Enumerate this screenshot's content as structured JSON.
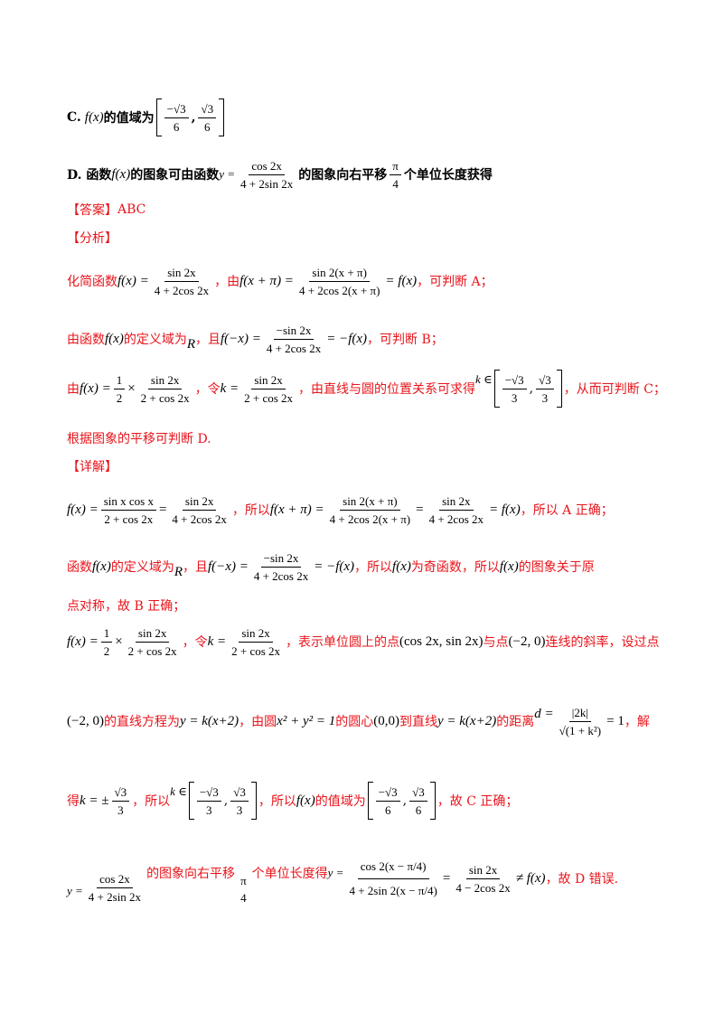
{
  "optionC": {
    "label": "C.",
    "fx": "f(x)",
    "text": "的值域为",
    "lower": "−√3 / 6",
    "upper": "√3 / 6"
  },
  "optionD": {
    "label": "D. 函数",
    "fx": "f(x)",
    "text1": "的图象可由函数",
    "y_eq": "y =",
    "num": "cos 2x",
    "den": "4 + 2sin 2x",
    "text2": "的图象向右平移",
    "shift_num": "π",
    "shift_den": "4",
    "text3": "个单位长度获得"
  },
  "answer": {
    "label": "【答案】",
    "value": "ABC"
  },
  "analysis": {
    "label": "【分析】",
    "l1": {
      "t1": "化简函数",
      "fx": "f(x) =",
      "num1": "sin 2x",
      "den1": "4 + 2cos 2x",
      "t2": "，由",
      "lhs": "f(x + π) =",
      "num2": "sin 2(x + π)",
      "den2": "4 + 2cos 2(x + π)",
      "rhs": "= f(x)",
      "t3": "，可判断 A；"
    },
    "l2": {
      "t1": "由函数",
      "fx": "f(x)",
      "t2": "的定义域为",
      "R": "R",
      "t3": "，且",
      "lhs": "f(−x) =",
      "num": "−sin 2x",
      "den": "4 + 2cos 2x",
      "rhs": "= −f(x)",
      "t4": "，可判断 B；"
    },
    "l3": {
      "t1": "由",
      "lhs": "f(x) =",
      "half_num": "1",
      "half_den": "2",
      "times": "×",
      "num": "sin 2x",
      "den": "2 + cos 2x",
      "t2": "，令",
      "k": "k =",
      "knum": "sin 2x",
      "kden": "2 + cos 2x",
      "t3": "，由直线与圆的位置关系可求得",
      "kin": "k ∈",
      "lo_num": "−√3",
      "lo_den": "3",
      "hi_num": "√3",
      "hi_den": "3",
      "t4": "，从而可判断 C；"
    },
    "l4": "根据图象的平移可判断 D."
  },
  "detail": {
    "label": "【详解】",
    "l1": {
      "lhs": "f(x) =",
      "num1": "sin x cos x",
      "den1": "2 + cos 2x",
      "eq": "=",
      "num2": "sin 2x",
      "den2": "4 + 2cos 2x",
      "t1": "，所以",
      "lhs2": "f(x + π) =",
      "num3": "sin 2(x + π)",
      "den3": "4 + 2cos 2(x + π)",
      "eq2": "=",
      "num4": "sin 2x",
      "den4": "4 + 2cos 2x",
      "rhs": "= f(x)",
      "t2": "，所以 A 正确；"
    },
    "l2": {
      "t1": "函数",
      "fx": "f(x)",
      "t2": "的定义域为",
      "R": "R",
      "t3": "，且",
      "lhs": "f(−x) =",
      "num": "−sin 2x",
      "den": "4 + 2cos 2x",
      "rhs": "= −f(x)",
      "t4": "，所以",
      "fx2": "f(x)",
      "t5": "为奇函数，所以",
      "fx3": "f(x)",
      "t6": "的图象关于原"
    },
    "l3": "点对称，故 B 正确；",
    "l4": {
      "lhs": "f(x) =",
      "half_num": "1",
      "half_den": "2",
      "times": "×",
      "num": "sin 2x",
      "den": "2 + cos 2x",
      "t1": "，令",
      "k": "k =",
      "knum": "sin 2x",
      "kden": "2 + cos 2x",
      "t2": "，表示单位圆上的点",
      "pt1": "(cos 2x, sin 2x)",
      "t3": "与点",
      "pt2": "(−2, 0)",
      "t4": "连线的斜率，设过点"
    },
    "l5": {
      "pt": "(−2, 0)",
      "t1": "的直线方程为",
      "line": "y = k(x+2)",
      "t2": "，由圆",
      "circle": "x² + y² = 1",
      "t3": "的圆心",
      "center": "(0,0)",
      "t4": "到直线",
      "line2": "y = k(x+2)",
      "t5": "的距离",
      "d": "d =",
      "dnum": "|2k|",
      "dden": "√(1 + k²)",
      "deq": "= 1",
      "t6": "，解"
    },
    "l6": {
      "t1": "得",
      "keq": "k = ±",
      "knum": "√3",
      "kden": "3",
      "t2": "，所以",
      "kin": "k ∈",
      "lo_num": "−√3",
      "lo_den": "3",
      "hi_num": "√3",
      "hi_den": "3",
      "t3": "，所以",
      "fx": "f(x)",
      "t4": "的值域为",
      "vlo_num": "−√3",
      "vlo_den": "6",
      "vhi_num": "√3",
      "vhi_den": "6",
      "t5": "，故 C 正确；"
    },
    "l7": {
      "y": "y =",
      "num": "cos 2x",
      "den": "4 + 2sin 2x",
      "t1": "的图象向右平移",
      "pi": "π",
      "four": "4",
      "t2": "个单位长度得",
      "y2": "y =",
      "num2": "cos 2(x − π/4)",
      "den2": "4 + 2sin 2(x − π/4)",
      "eq": "=",
      "num3": "sin 2x",
      "den3": "4 − 2cos 2x",
      "neq": "≠ f(x)",
      "t3": "，故 D 错误."
    }
  }
}
